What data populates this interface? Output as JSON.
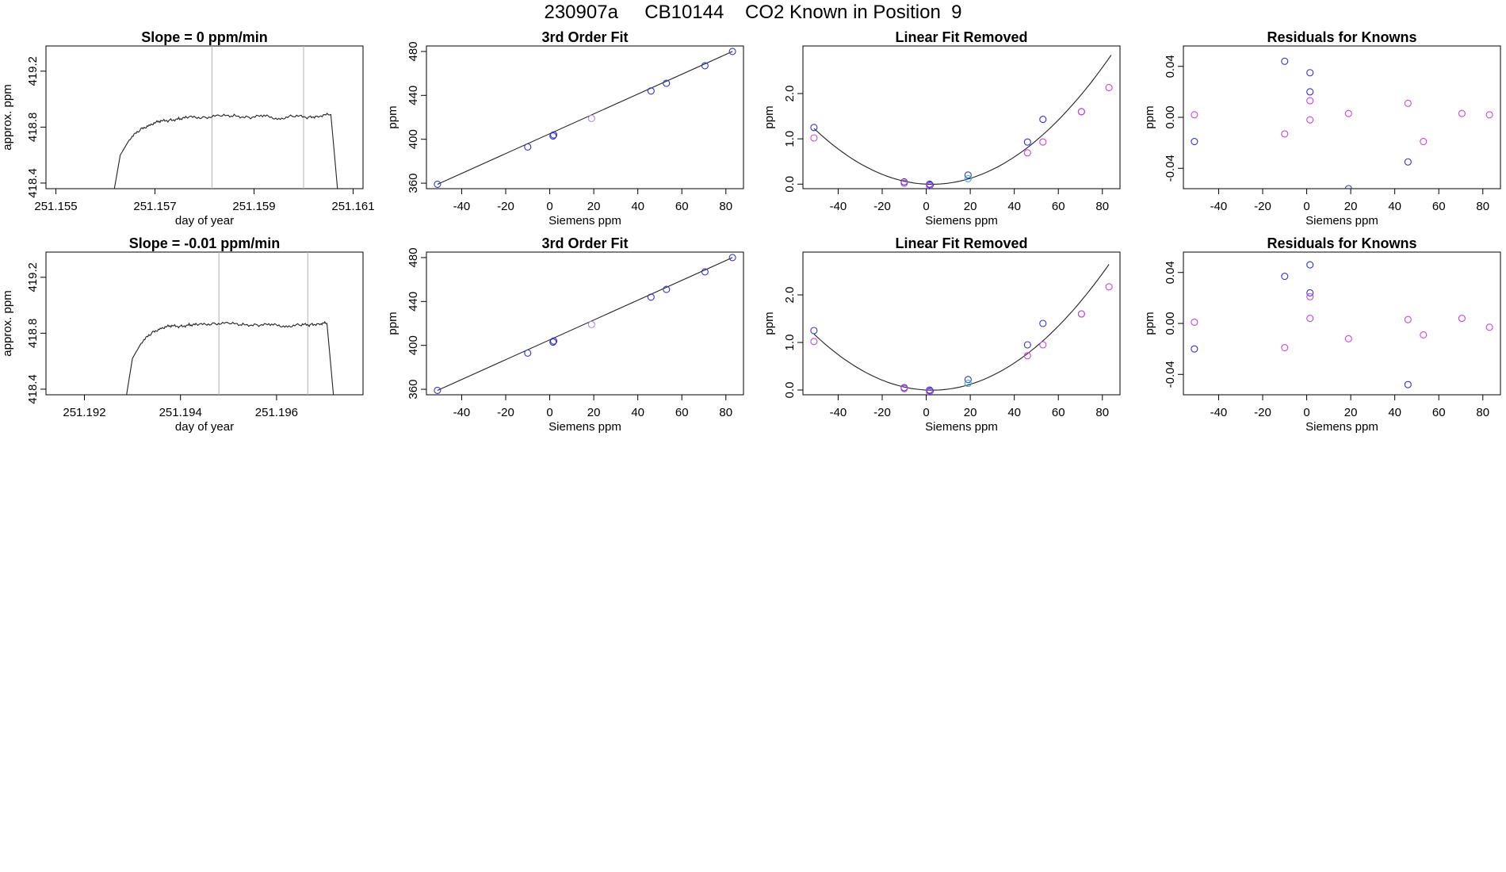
{
  "figure": {
    "title": "230907a     CB10144    CO2 Known in Position  9"
  },
  "colors": {
    "blue": "#3333cc",
    "magenta": "#cc44dd",
    "cyan": "#33aadd",
    "lavender": "#aa88ee",
    "line": "#222222",
    "marker": "#b0b0b0"
  },
  "chart_data": [
    {
      "type": "line",
      "title": "Slope =  0  ppm/min",
      "xlabel": "day of year",
      "ylabel": "approx. ppm",
      "xlim": [
        251.1548,
        251.1612
      ],
      "ylim": [
        418.36,
        419.38
      ],
      "xticks": [
        "251.155",
        "251.157",
        "251.159",
        "251.161"
      ],
      "xtick_values": [
        251.155,
        251.157,
        251.159,
        251.161
      ],
      "yticks": [
        "418.4",
        "418.8",
        "419.2"
      ],
      "ytick_values": [
        418.4,
        418.8,
        419.2
      ],
      "vlines": [
        251.15815,
        251.16
      ],
      "series": [
        {
          "x": [
            251.15615,
            251.1563,
            251.1565,
            251.1567,
            251.1569,
            251.1571,
            251.1573,
            251.1575,
            251.1577,
            251.158,
            251.1583,
            251.1586,
            251.1589,
            251.1592,
            251.1595,
            251.1598,
            251.1601,
            251.1603,
            251.16055,
            251.1607
          ],
          "y": [
            418.3,
            418.6,
            418.72,
            418.78,
            418.82,
            418.84,
            418.85,
            418.86,
            418.87,
            418.87,
            418.88,
            418.88,
            418.87,
            418.88,
            418.86,
            418.88,
            418.87,
            418.88,
            418.89,
            418.3
          ]
        }
      ]
    },
    {
      "type": "scatter",
      "title": "3rd Order Fit",
      "xlabel": "Siemens ppm",
      "ylabel": "ppm",
      "xlim": [
        -56,
        88
      ],
      "ylim": [
        355,
        485
      ],
      "xticks": [
        "-40",
        "-20",
        "0",
        "20",
        "40",
        "60",
        "80"
      ],
      "xtick_values": [
        -40,
        -20,
        0,
        20,
        40,
        60,
        80
      ],
      "yticks": [
        "360",
        "400",
        "440",
        "480"
      ],
      "ytick_values": [
        360,
        400,
        440,
        480
      ],
      "fit_line": {
        "x": [
          -51,
          83
        ],
        "y": [
          359,
          480
        ]
      },
      "series": [
        {
          "color": "blue",
          "x": [
            -51,
            -10,
            1.5,
            1.8,
            46,
            53,
            70.5,
            83
          ],
          "y": [
            359,
            393,
            403,
            404,
            444,
            451,
            467,
            480
          ]
        },
        {
          "color": "lavender",
          "x": [
            19
          ],
          "y": [
            419
          ]
        }
      ]
    },
    {
      "type": "scatter",
      "title": "Linear Fit Removed",
      "xlabel": "Siemens ppm",
      "ylabel": "ppm",
      "xlim": [
        -56,
        88
      ],
      "ylim": [
        -0.1,
        3.05
      ],
      "xticks": [
        "-40",
        "-20",
        "0",
        "20",
        "40",
        "60",
        "80"
      ],
      "xtick_values": [
        -40,
        -20,
        0,
        20,
        40,
        60,
        80
      ],
      "yticks": [
        "0.0",
        "1.0",
        "2.0"
      ],
      "ytick_values": [
        0,
        1,
        2
      ],
      "curve": {
        "a": 0.00043,
        "b": -0.0022,
        "c": 0,
        "xmin": -51,
        "xmax": 84
      },
      "series": [
        {
          "color": "blue",
          "x": [
            -51,
            -10,
            1.5,
            1.8,
            19,
            46,
            53,
            70.5
          ],
          "y": [
            1.25,
            0.05,
            0.0,
            -0.02,
            0.2,
            0.93,
            1.43,
            1.6
          ]
        },
        {
          "color": "magenta",
          "x": [
            -51,
            -10,
            1.5,
            46,
            53,
            70.5,
            83
          ],
          "y": [
            1.02,
            0.02,
            -0.04,
            0.69,
            0.93,
            1.6,
            2.13
          ]
        },
        {
          "color": "cyan",
          "x": [
            19
          ],
          "y": [
            0.12
          ]
        }
      ]
    },
    {
      "type": "scatter",
      "title": "Residuals for Knowns",
      "xlabel": "Siemens ppm",
      "ylabel": "ppm",
      "xlim": [
        -56,
        88
      ],
      "ylim": [
        -0.056,
        0.056
      ],
      "xticks": [
        "-40",
        "-20",
        "0",
        "20",
        "40",
        "60",
        "80"
      ],
      "xtick_values": [
        -40,
        -20,
        0,
        20,
        40,
        60,
        80
      ],
      "yticks": [
        "-0.04",
        "0.00",
        "0.04"
      ],
      "ytick_values": [
        -0.04,
        0,
        0.04
      ],
      "series": [
        {
          "color": "blue",
          "x": [
            -51,
            -10,
            1.5,
            1.5,
            19,
            46
          ],
          "y": [
            -0.019,
            0.044,
            0.035,
            0.02,
            -0.056,
            -0.035
          ]
        },
        {
          "color": "magenta",
          "x": [
            -51,
            -10,
            1.5,
            1.5,
            19,
            46,
            53,
            70.5,
            83
          ],
          "y": [
            0.002,
            -0.013,
            0.013,
            -0.002,
            0.003,
            0.011,
            -0.019,
            0.003,
            0.002
          ]
        }
      ]
    },
    {
      "type": "line",
      "title": "Slope =  -0.01  ppm/min",
      "xlabel": "day of year",
      "ylabel": "approx. ppm",
      "xlim": [
        251.1912,
        251.1978
      ],
      "ylim": [
        418.36,
        419.38
      ],
      "xticks": [
        "251.192",
        "251.194",
        "251.196"
      ],
      "xtick_values": [
        251.192,
        251.194,
        251.196
      ],
      "yticks": [
        "418.4",
        "418.8",
        "419.2"
      ],
      "ytick_values": [
        418.4,
        418.8,
        419.2
      ],
      "vlines": [
        251.1948,
        251.19665
      ],
      "series": [
        {
          "x": [
            251.19285,
            251.193,
            251.1932,
            251.1934,
            251.1936,
            251.1938,
            251.194,
            251.1942,
            251.1944,
            251.1947,
            251.195,
            251.1953,
            251.1956,
            251.1959,
            251.1962,
            251.1965,
            251.1967,
            251.1969,
            251.19705,
            251.1972
          ],
          "y": [
            418.3,
            418.62,
            418.74,
            418.8,
            418.84,
            418.85,
            418.85,
            418.86,
            418.86,
            418.87,
            418.87,
            418.86,
            418.86,
            418.86,
            418.85,
            418.86,
            418.86,
            418.87,
            418.87,
            418.3
          ]
        }
      ]
    },
    {
      "type": "scatter",
      "title": "3rd Order Fit",
      "xlabel": "Siemens ppm",
      "ylabel": "ppm",
      "xlim": [
        -56,
        88
      ],
      "ylim": [
        355,
        485
      ],
      "xticks": [
        "-40",
        "-20",
        "0",
        "20",
        "40",
        "60",
        "80"
      ],
      "xtick_values": [
        -40,
        -20,
        0,
        20,
        40,
        60,
        80
      ],
      "yticks": [
        "360",
        "400",
        "440",
        "480"
      ],
      "ytick_values": [
        360,
        400,
        440,
        480
      ],
      "fit_line": {
        "x": [
          -51,
          83
        ],
        "y": [
          359,
          480
        ]
      },
      "series": [
        {
          "color": "blue",
          "x": [
            -51,
            -10,
            1.5,
            1.8,
            46,
            53,
            70.5,
            83
          ],
          "y": [
            359,
            393,
            403,
            404,
            444,
            451,
            467,
            480
          ]
        },
        {
          "color": "lavender",
          "x": [
            19
          ],
          "y": [
            419
          ]
        }
      ]
    },
    {
      "type": "scatter",
      "title": "Linear Fit Removed",
      "xlabel": "Siemens ppm",
      "ylabel": "ppm",
      "xlim": [
        -56,
        88
      ],
      "ylim": [
        -0.1,
        2.9
      ],
      "xticks": [
        "-40",
        "-20",
        "0",
        "20",
        "40",
        "60",
        "80"
      ],
      "xtick_values": [
        -40,
        -20,
        0,
        20,
        40,
        60,
        80
      ],
      "yticks": [
        "0.0",
        "1.0",
        "2.0"
      ],
      "ytick_values": [
        0,
        1,
        2
      ],
      "curve": {
        "a": 0.00041,
        "b": -0.0022,
        "c": 0,
        "xmin": -51,
        "xmax": 83
      },
      "series": [
        {
          "color": "blue",
          "x": [
            -51,
            -10,
            1.5,
            1.8,
            19,
            46,
            53,
            70.5
          ],
          "y": [
            1.25,
            0.05,
            0.0,
            -0.02,
            0.22,
            0.95,
            1.4,
            1.6
          ]
        },
        {
          "color": "magenta",
          "x": [
            -51,
            -10,
            1.5,
            46,
            53,
            70.5,
            83
          ],
          "y": [
            1.02,
            0.03,
            -0.04,
            0.72,
            0.95,
            1.6,
            2.17
          ]
        },
        {
          "color": "cyan",
          "x": [
            19
          ],
          "y": [
            0.14
          ]
        }
      ]
    },
    {
      "type": "scatter",
      "title": "Residuals for Knowns",
      "xlabel": "Siemens ppm",
      "ylabel": "ppm",
      "xlim": [
        -56,
        88
      ],
      "ylim": [
        -0.056,
        0.056
      ],
      "xticks": [
        "-40",
        "-20",
        "0",
        "20",
        "40",
        "60",
        "80"
      ],
      "xtick_values": [
        -40,
        -20,
        0,
        20,
        40,
        60,
        80
      ],
      "yticks": [
        "-0.04",
        "0.00",
        "0.04"
      ],
      "ytick_values": [
        -0.04,
        0,
        0.04
      ],
      "series": [
        {
          "color": "blue",
          "x": [
            -51,
            -10,
            1.5,
            1.5,
            46
          ],
          "y": [
            -0.02,
            0.037,
            0.046,
            0.024,
            -0.048
          ]
        },
        {
          "color": "magenta",
          "x": [
            -51,
            -10,
            1.5,
            1.5,
            19,
            46,
            53,
            70.5,
            83
          ],
          "y": [
            0.001,
            -0.019,
            0.021,
            0.004,
            -0.012,
            0.003,
            -0.009,
            0.004,
            -0.003
          ]
        }
      ]
    }
  ]
}
